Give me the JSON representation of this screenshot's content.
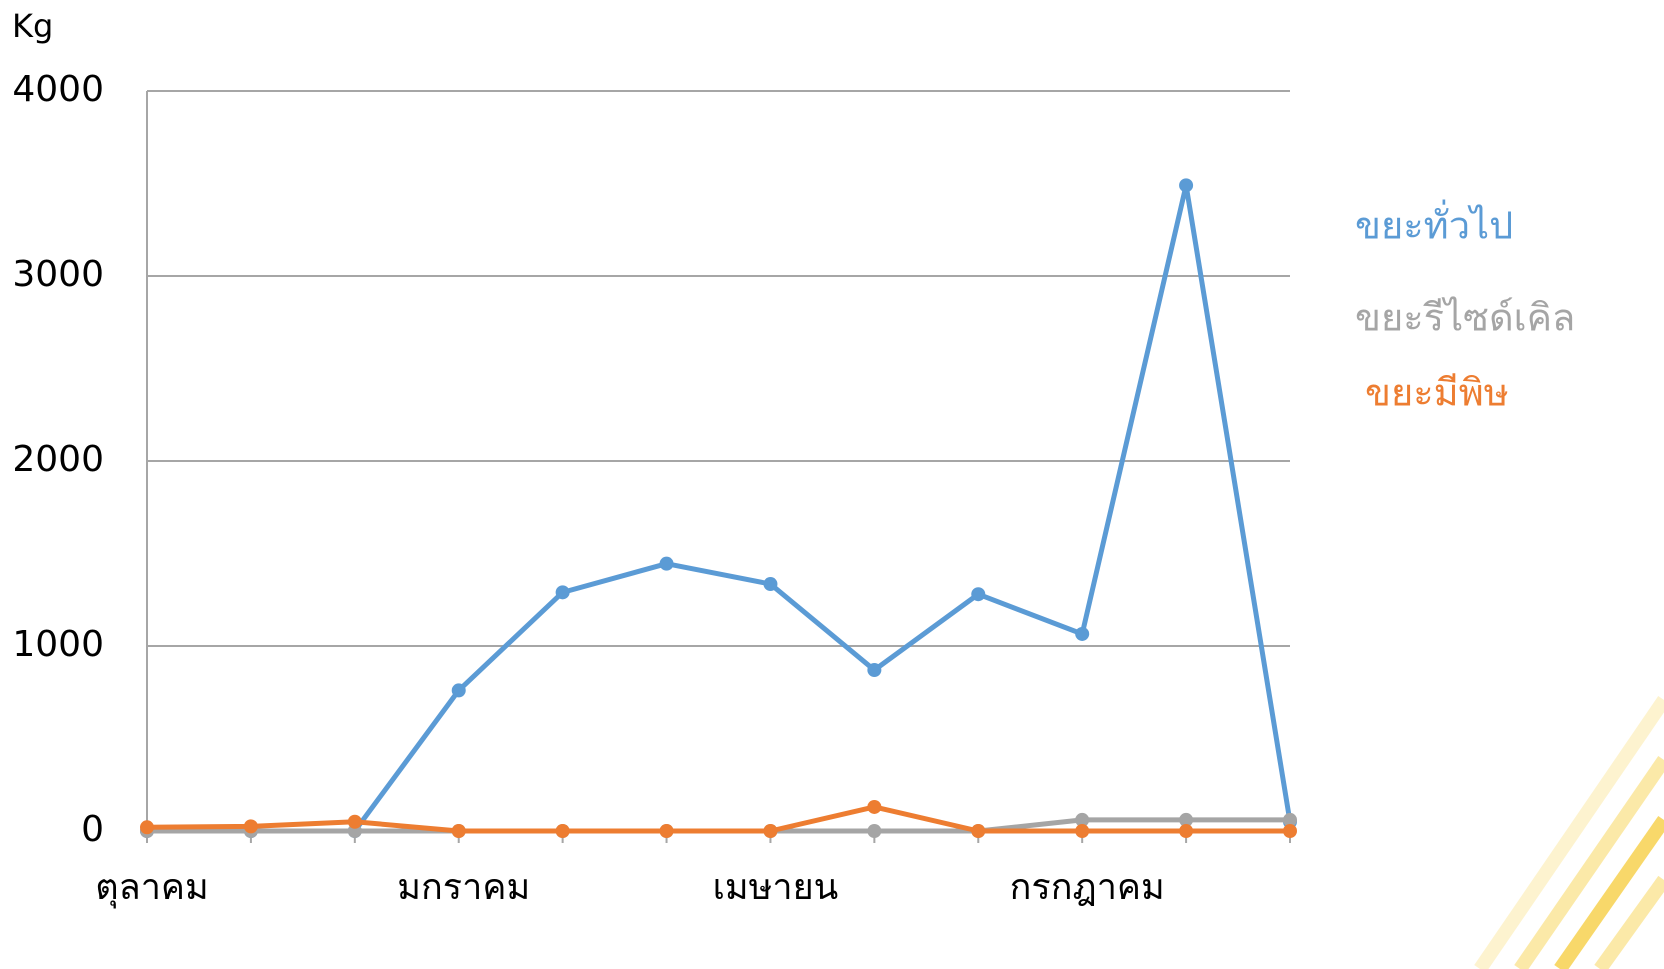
{
  "chart_data": {
    "type": "line",
    "y_label": "Kg",
    "categories": [
      "ตุลาคม",
      null,
      null,
      "มกราคม",
      null,
      null,
      "เมษายน",
      null,
      null,
      "กรกฎาคม",
      null,
      null
    ],
    "series": [
      {
        "name": "ขยะทั่วไป",
        "color": "#5b9bd5",
        "values": [
          0,
          0,
          0,
          760,
          1290,
          1445,
          1335,
          870,
          1280,
          1065,
          3490,
          50
        ]
      },
      {
        "name": "ขยะรีไซด์เคิล",
        "color": "#a5a5a5",
        "values": [
          0,
          0,
          0,
          0,
          0,
          0,
          0,
          0,
          0,
          60,
          60,
          60
        ]
      },
      {
        "name": "ขยะมีพิษ",
        "color": "#ed7d31",
        "values": [
          20,
          25,
          50,
          0,
          0,
          0,
          0,
          130,
          0,
          0,
          0,
          0
        ]
      }
    ],
    "ylim": [
      0,
      4000
    ],
    "yticks": [
      0,
      1000,
      2000,
      3000,
      4000
    ],
    "grid": true,
    "legend": "right"
  }
}
